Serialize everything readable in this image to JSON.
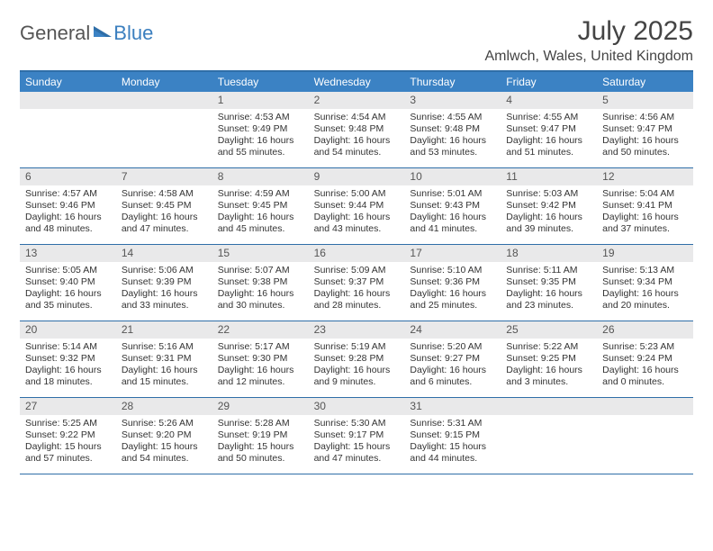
{
  "logo": {
    "text1": "General",
    "text2": "Blue"
  },
  "title": "July 2025",
  "location": "Amlwch, Wales, United Kingdom",
  "colors": {
    "header_bg": "#3b82c4",
    "header_border": "#2f6ea8",
    "daynum_bg": "#e9e9ea",
    "text": "#333333",
    "logo_blue": "#3b7fbf"
  },
  "dow": [
    "Sunday",
    "Monday",
    "Tuesday",
    "Wednesday",
    "Thursday",
    "Friday",
    "Saturday"
  ],
  "first_weekday": 2,
  "days": [
    {
      "n": 1,
      "sunrise": "4:53 AM",
      "sunset": "9:49 PM",
      "daylight": "16 hours and 55 minutes."
    },
    {
      "n": 2,
      "sunrise": "4:54 AM",
      "sunset": "9:48 PM",
      "daylight": "16 hours and 54 minutes."
    },
    {
      "n": 3,
      "sunrise": "4:55 AM",
      "sunset": "9:48 PM",
      "daylight": "16 hours and 53 minutes."
    },
    {
      "n": 4,
      "sunrise": "4:55 AM",
      "sunset": "9:47 PM",
      "daylight": "16 hours and 51 minutes."
    },
    {
      "n": 5,
      "sunrise": "4:56 AM",
      "sunset": "9:47 PM",
      "daylight": "16 hours and 50 minutes."
    },
    {
      "n": 6,
      "sunrise": "4:57 AM",
      "sunset": "9:46 PM",
      "daylight": "16 hours and 48 minutes."
    },
    {
      "n": 7,
      "sunrise": "4:58 AM",
      "sunset": "9:45 PM",
      "daylight": "16 hours and 47 minutes."
    },
    {
      "n": 8,
      "sunrise": "4:59 AM",
      "sunset": "9:45 PM",
      "daylight": "16 hours and 45 minutes."
    },
    {
      "n": 9,
      "sunrise": "5:00 AM",
      "sunset": "9:44 PM",
      "daylight": "16 hours and 43 minutes."
    },
    {
      "n": 10,
      "sunrise": "5:01 AM",
      "sunset": "9:43 PM",
      "daylight": "16 hours and 41 minutes."
    },
    {
      "n": 11,
      "sunrise": "5:03 AM",
      "sunset": "9:42 PM",
      "daylight": "16 hours and 39 minutes."
    },
    {
      "n": 12,
      "sunrise": "5:04 AM",
      "sunset": "9:41 PM",
      "daylight": "16 hours and 37 minutes."
    },
    {
      "n": 13,
      "sunrise": "5:05 AM",
      "sunset": "9:40 PM",
      "daylight": "16 hours and 35 minutes."
    },
    {
      "n": 14,
      "sunrise": "5:06 AM",
      "sunset": "9:39 PM",
      "daylight": "16 hours and 33 minutes."
    },
    {
      "n": 15,
      "sunrise": "5:07 AM",
      "sunset": "9:38 PM",
      "daylight": "16 hours and 30 minutes."
    },
    {
      "n": 16,
      "sunrise": "5:09 AM",
      "sunset": "9:37 PM",
      "daylight": "16 hours and 28 minutes."
    },
    {
      "n": 17,
      "sunrise": "5:10 AM",
      "sunset": "9:36 PM",
      "daylight": "16 hours and 25 minutes."
    },
    {
      "n": 18,
      "sunrise": "5:11 AM",
      "sunset": "9:35 PM",
      "daylight": "16 hours and 23 minutes."
    },
    {
      "n": 19,
      "sunrise": "5:13 AM",
      "sunset": "9:34 PM",
      "daylight": "16 hours and 20 minutes."
    },
    {
      "n": 20,
      "sunrise": "5:14 AM",
      "sunset": "9:32 PM",
      "daylight": "16 hours and 18 minutes."
    },
    {
      "n": 21,
      "sunrise": "5:16 AM",
      "sunset": "9:31 PM",
      "daylight": "16 hours and 15 minutes."
    },
    {
      "n": 22,
      "sunrise": "5:17 AM",
      "sunset": "9:30 PM",
      "daylight": "16 hours and 12 minutes."
    },
    {
      "n": 23,
      "sunrise": "5:19 AM",
      "sunset": "9:28 PM",
      "daylight": "16 hours and 9 minutes."
    },
    {
      "n": 24,
      "sunrise": "5:20 AM",
      "sunset": "9:27 PM",
      "daylight": "16 hours and 6 minutes."
    },
    {
      "n": 25,
      "sunrise": "5:22 AM",
      "sunset": "9:25 PM",
      "daylight": "16 hours and 3 minutes."
    },
    {
      "n": 26,
      "sunrise": "5:23 AM",
      "sunset": "9:24 PM",
      "daylight": "16 hours and 0 minutes."
    },
    {
      "n": 27,
      "sunrise": "5:25 AM",
      "sunset": "9:22 PM",
      "daylight": "15 hours and 57 minutes."
    },
    {
      "n": 28,
      "sunrise": "5:26 AM",
      "sunset": "9:20 PM",
      "daylight": "15 hours and 54 minutes."
    },
    {
      "n": 29,
      "sunrise": "5:28 AM",
      "sunset": "9:19 PM",
      "daylight": "15 hours and 50 minutes."
    },
    {
      "n": 30,
      "sunrise": "5:30 AM",
      "sunset": "9:17 PM",
      "daylight": "15 hours and 47 minutes."
    },
    {
      "n": 31,
      "sunrise": "5:31 AM",
      "sunset": "9:15 PM",
      "daylight": "15 hours and 44 minutes."
    }
  ],
  "labels": {
    "sunrise": "Sunrise:",
    "sunset": "Sunset:",
    "daylight": "Daylight:"
  }
}
